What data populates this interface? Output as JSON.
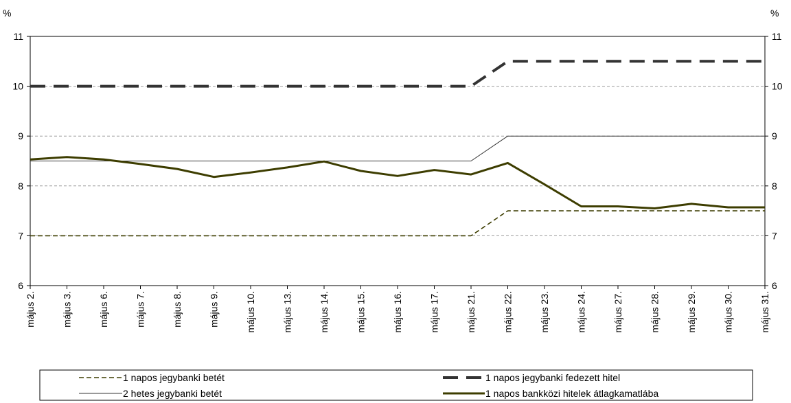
{
  "chart_data": {
    "type": "line",
    "unit_left": "%",
    "unit_right": "%",
    "title": "",
    "xlabel": "",
    "ylabel": "",
    "ylim": [
      6,
      11
    ],
    "yticks": [
      6,
      7,
      8,
      9,
      10,
      11
    ],
    "grid": "horizontal dashed",
    "legend_position": "bottom",
    "categories": [
      "május 2.",
      "május 3.",
      "május 6.",
      "május 7.",
      "május 8.",
      "május 9.",
      "május 10.",
      "május 13.",
      "május 14.",
      "május 15.",
      "május 16.",
      "május 17.",
      "május 21.",
      "május 22.",
      "május 23.",
      "május 24.",
      "május 27.",
      "május 28.",
      "május 29.",
      "május 30.",
      "május 31."
    ],
    "series": [
      {
        "name": "1 napos jegybanki betét",
        "color": "#3d3d00",
        "style": "dashed-thin",
        "values": [
          7,
          7,
          7,
          7,
          7,
          7,
          7,
          7,
          7,
          7,
          7,
          7,
          7,
          7.5,
          7.5,
          7.5,
          7.5,
          7.5,
          7.5,
          7.5,
          7.5
        ]
      },
      {
        "name": "1 napos jegybanki fedezett hitel",
        "color": "#333333",
        "style": "dashed-thick",
        "values": [
          10,
          10,
          10,
          10,
          10,
          10,
          10,
          10,
          10,
          10,
          10,
          10,
          10,
          10.5,
          10.5,
          10.5,
          10.5,
          10.5,
          10.5,
          10.5,
          10.5
        ]
      },
      {
        "name": "2 hetes jegybanki betét",
        "color": "#333333",
        "style": "solid-thin",
        "values": [
          8.5,
          8.5,
          8.5,
          8.5,
          8.5,
          8.5,
          8.5,
          8.5,
          8.5,
          8.5,
          8.5,
          8.5,
          8.5,
          9,
          9,
          9,
          9,
          9,
          9,
          9,
          9
        ]
      },
      {
        "name": "1 napos bankközi hitelek átlagkamatlába",
        "color": "#3d3d00",
        "style": "solid-thick",
        "values": [
          8.53,
          8.58,
          8.53,
          8.44,
          8.34,
          8.18,
          8.27,
          8.37,
          8.49,
          8.3,
          8.2,
          8.32,
          8.23,
          8.46,
          8.03,
          7.59,
          7.59,
          7.55,
          7.64,
          7.57,
          7.57
        ]
      }
    ]
  }
}
